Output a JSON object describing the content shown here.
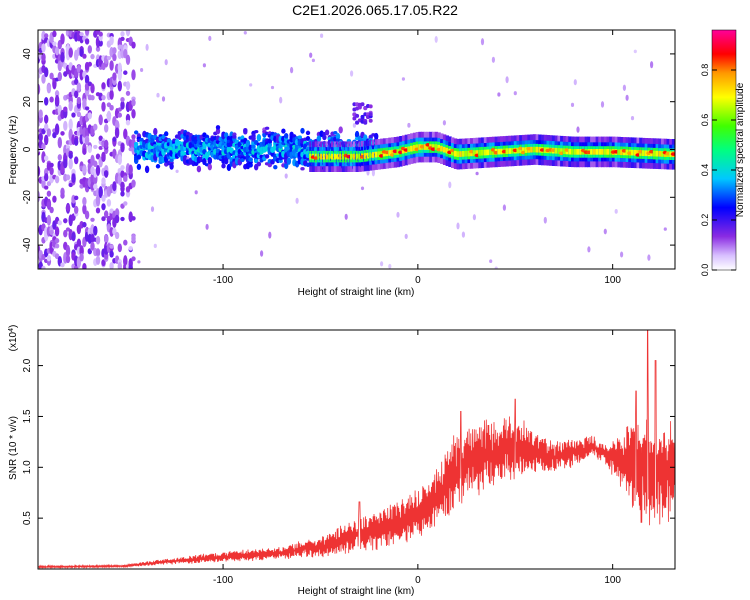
{
  "title": "C2E1.2026.065.17.05.R22",
  "colors": {
    "line": "#ee3333",
    "axis": "#000000",
    "background": "#ffffff"
  },
  "chart_data": [
    {
      "type": "heatmap",
      "title": "C2E1.2026.065.17.05.R22",
      "xlabel": "Height of straight line (km)",
      "ylabel": "Frequency (Hz)",
      "xlim": [
        -195,
        132
      ],
      "ylim": [
        -50,
        50
      ],
      "x_ticks": [
        -100,
        0,
        100
      ],
      "x_tick_labels": [
        "-100",
        "0",
        "100"
      ],
      "y_ticks": [
        -40,
        -20,
        0,
        20,
        40
      ],
      "y_tick_labels": [
        "-40",
        "-20",
        "0",
        "20",
        "40"
      ],
      "colorbar": {
        "label": "Normalized spectral amplitude",
        "range": [
          0.0,
          0.96
        ],
        "ticks": [
          0.0,
          0.2,
          0.4,
          0.6,
          0.8
        ],
        "tick_labels": [
          "0.0",
          "0.2",
          "0.4",
          "0.6",
          "0.8"
        ],
        "colormap": "rainbow (white-purple-blue-cyan-green-yellow-orange-red-magenta)"
      },
      "regions": [
        {
          "name": "noise",
          "x_range": [
            -195,
            -145
          ],
          "freq_range": [
            -50,
            50
          ],
          "amplitude": 0.05
        },
        {
          "name": "turbulent",
          "x_range": [
            -145,
            -20
          ],
          "center_freq": 0,
          "half_width": 10,
          "amplitude": 0.2
        },
        {
          "name": "side-lobe",
          "x_range": [
            -33,
            -24
          ],
          "center_freq": 15,
          "half_width": 4,
          "amplitude": 0.12
        },
        {
          "name": "signal-band",
          "x_range": [
            -55,
            132
          ],
          "center_freq": 0,
          "half_width": 4,
          "amplitude": 0.8
        }
      ],
      "ridge_center_freq": [
        {
          "x": -55,
          "y": -3
        },
        {
          "x": -30,
          "y": -3
        },
        {
          "x": -10,
          "y": -1
        },
        {
          "x": 0,
          "y": 1
        },
        {
          "x": 10,
          "y": 1
        },
        {
          "x": 20,
          "y": -2
        },
        {
          "x": 40,
          "y": -1
        },
        {
          "x": 60,
          "y": 0
        },
        {
          "x": 80,
          "y": -1
        },
        {
          "x": 100,
          "y": -1
        },
        {
          "x": 130,
          "y": -2
        }
      ]
    },
    {
      "type": "line",
      "xlabel": "Height of straight line (km)",
      "ylabel": "SNR (10 * v/v)",
      "y_scale_label": "(x10",
      "y_scale_exponent": "4",
      "xlim": [
        -195,
        132
      ],
      "ylim": [
        0,
        2.35
      ],
      "x_ticks": [
        -100,
        0,
        100
      ],
      "x_tick_labels": [
        "-100",
        "0",
        "100"
      ],
      "y_ticks": [
        0.5,
        1.0,
        1.5,
        2.0
      ],
      "y_tick_labels": [
        "0.5",
        "1.0",
        "1.5",
        "2.0"
      ],
      "series": [
        {
          "name": "SNR",
          "envelope_x": [
            -195,
            -150,
            -130,
            -100,
            -70,
            -50,
            -40,
            -30,
            -20,
            -10,
            0,
            10,
            20,
            30,
            40,
            50,
            60,
            70,
            80,
            90,
            97,
            105,
            115,
            125,
            132
          ],
          "envelope_mean": [
            0.02,
            0.03,
            0.07,
            0.12,
            0.16,
            0.22,
            0.28,
            0.34,
            0.38,
            0.45,
            0.55,
            0.72,
            0.95,
            1.1,
            1.15,
            1.2,
            1.15,
            1.1,
            1.15,
            1.2,
            1.12,
            1.05,
            1.0,
            0.95,
            1.0
          ],
          "envelope_spread": [
            0.01,
            0.01,
            0.03,
            0.05,
            0.06,
            0.1,
            0.13,
            0.16,
            0.18,
            0.2,
            0.22,
            0.3,
            0.4,
            0.35,
            0.3,
            0.3,
            0.22,
            0.15,
            0.13,
            0.1,
            0.1,
            0.3,
            0.55,
            0.5,
            0.45
          ],
          "peaks": [
            {
              "x": -30,
              "y": 0.66
            },
            {
              "x": 22,
              "y": 1.55
            },
            {
              "x": 50,
              "y": 1.67
            },
            {
              "x": 112,
              "y": 1.75
            },
            {
              "x": 118,
              "y": 2.35
            },
            {
              "x": 122,
              "y": 2.05
            }
          ]
        }
      ]
    }
  ]
}
